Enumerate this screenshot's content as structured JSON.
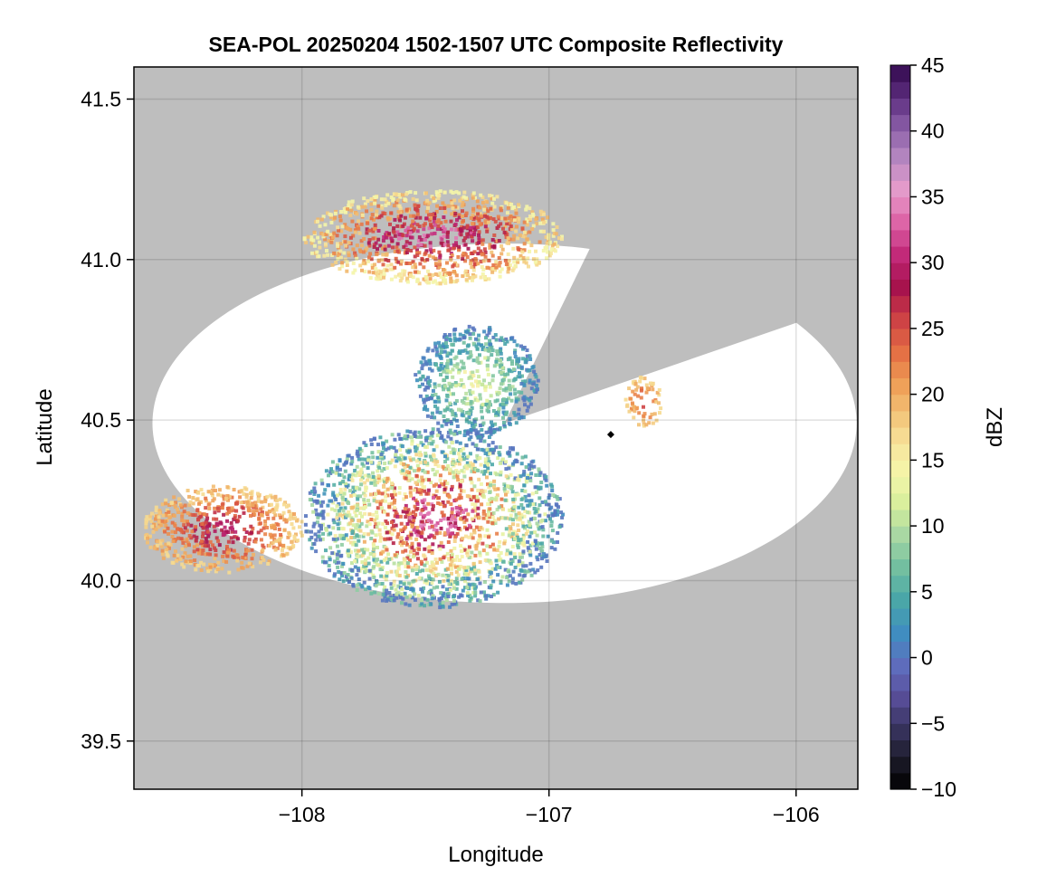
{
  "chart_data": {
    "type": "heatmap",
    "title": "SEA-POL 20250204 1502-1507 UTC Composite Reflectivity",
    "xlabel": "Longitude",
    "ylabel": "Latitude",
    "xlim": [
      -108.68,
      -105.75
    ],
    "ylim": [
      39.35,
      41.6
    ],
    "xticks": [
      -108,
      -107,
      -106
    ],
    "xtick_labels": [
      "−108",
      "−107",
      "−106"
    ],
    "yticks": [
      39.5,
      40.0,
      40.5,
      41.0,
      41.5
    ],
    "ytick_labels": [
      "39.5",
      "40.0",
      "40.5",
      "41.0",
      "41.5"
    ],
    "grid": true,
    "background_color": "#bebebe",
    "coverage_color": "#ffffff",
    "radar": {
      "center": [
        -107.18,
        40.49
      ],
      "range_deg_lon": 2.85,
      "range_deg_lat": 1.12,
      "blocked_sector": {
        "azimuth_start_deg": 14,
        "azimuth_end_deg": 56
      },
      "marker": [
        -106.75,
        40.455
      ]
    },
    "colorbar": {
      "label": "dBZ",
      "min": -10,
      "max": 45,
      "ticks": [
        -10,
        -5,
        0,
        5,
        10,
        15,
        20,
        25,
        30,
        35,
        40,
        45
      ],
      "tick_labels": [
        "−10",
        "−5",
        "0",
        "5",
        "10",
        "15",
        "20",
        "25",
        "30",
        "35",
        "40",
        "45"
      ],
      "colormap": "Spectral_r",
      "stops": [
        "#000000",
        "#1d1c2b",
        "#3a3562",
        "#5a4f9c",
        "#5e6fbf",
        "#3f8ec0",
        "#4aa6a8",
        "#70bea0",
        "#a4d6a4",
        "#d6ee9b",
        "#f4f6aa",
        "#f7e49c",
        "#f2c074",
        "#ee9a53",
        "#e36a43",
        "#cc3e45",
        "#a5104d",
        "#c22a7a",
        "#dd63a6",
        "#e79ccb",
        "#b889c2",
        "#8b5fa8",
        "#5c2d7e",
        "#32084d"
      ]
    },
    "echoes": [
      {
        "name": "northern band",
        "lon": [
          -108.0,
          -106.95
        ],
        "lat": [
          40.93,
          41.22
        ],
        "dbz_range": [
          14,
          34
        ]
      },
      {
        "name": "central cluster",
        "lon": [
          -107.55,
          -107.05
        ],
        "lat": [
          40.45,
          40.8
        ],
        "dbz_range": [
          0,
          15
        ]
      },
      {
        "name": "eastern cells",
        "lon": [
          -106.7,
          -106.55
        ],
        "lat": [
          40.48,
          40.64
        ],
        "dbz_range": [
          17,
          26
        ]
      },
      {
        "name": "southern band",
        "lon": [
          -108.0,
          -106.95
        ],
        "lat": [
          39.92,
          40.48
        ],
        "dbz_range": [
          0,
          34
        ]
      },
      {
        "name": "western cells",
        "lon": [
          -108.65,
          -108.0
        ],
        "lat": [
          40.03,
          40.3
        ],
        "dbz_range": [
          17,
          30
        ]
      }
    ]
  }
}
